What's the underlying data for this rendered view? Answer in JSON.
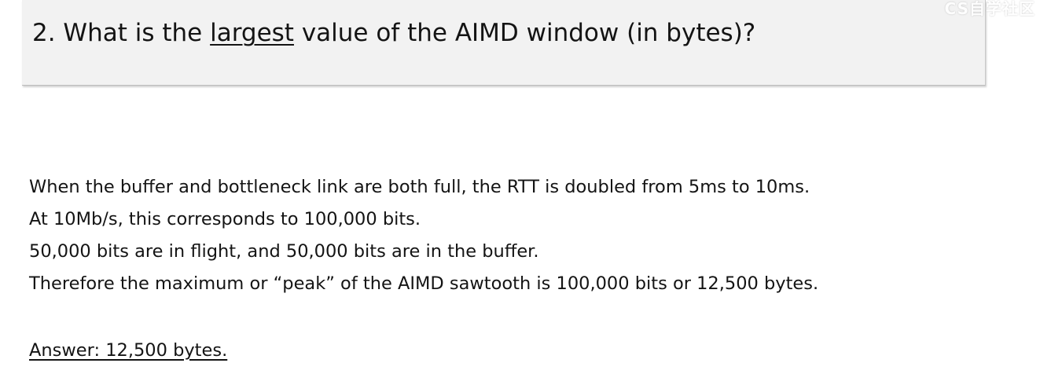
{
  "question": {
    "prefix": "2. What is the ",
    "emphasis": "largest",
    "suffix": " value of the AIMD window (in bytes)?"
  },
  "explanation": {
    "lines": [
      "When the buffer and bottleneck link are both full, the RTT is doubled from 5ms to 10ms.",
      "At 10Mb/s, this corresponds to 100,000 bits.",
      "50,000 bits are in flight, and 50,000 bits are in the buffer.",
      "Therefore the maximum or “peak” of the AIMD sawtooth is 100,000 bits or 12,500 bytes."
    ]
  },
  "answer": "Answer: 12,500 bytes.",
  "watermark": "CS自学社区"
}
